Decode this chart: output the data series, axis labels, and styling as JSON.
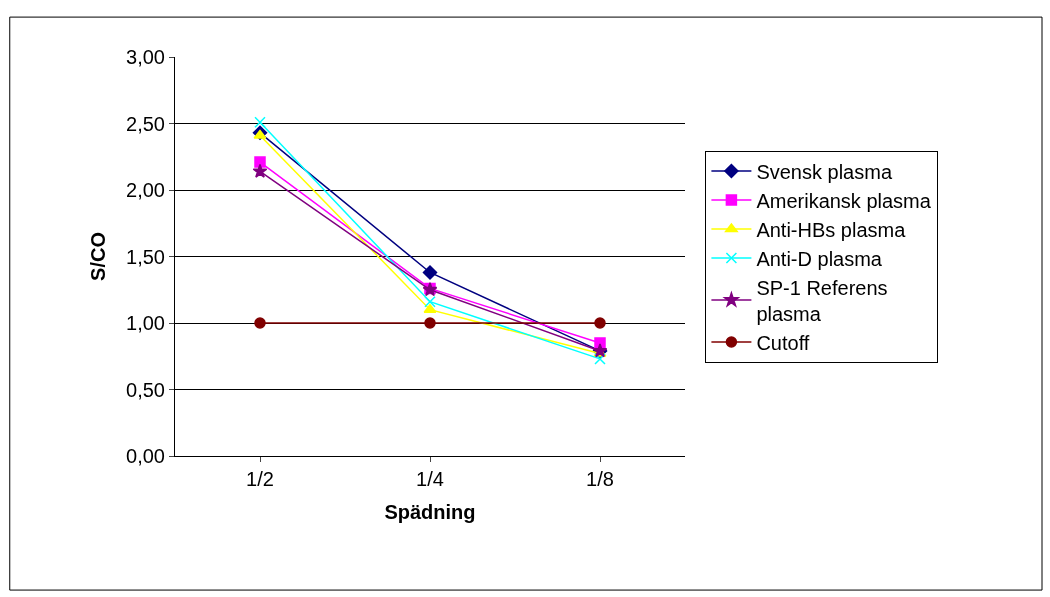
{
  "chart_data": {
    "type": "line",
    "xlabel": "Spädning",
    "ylabel": "S/CO",
    "categories": [
      "1/2",
      "1/4",
      "1/8"
    ],
    "ylim": [
      0,
      3
    ],
    "yticks": [
      {
        "value": 0,
        "label": "0,00"
      },
      {
        "value": 0.5,
        "label": "0,50"
      },
      {
        "value": 1,
        "label": "1,00"
      },
      {
        "value": 1.5,
        "label": "1,50"
      },
      {
        "value": 2,
        "label": "2,00"
      },
      {
        "value": 2.5,
        "label": "2,50"
      },
      {
        "value": 3,
        "label": "3,00"
      }
    ],
    "grid": "y",
    "legend": "right",
    "line_style": "solid",
    "series": [
      {
        "name": "Svensk plasma",
        "color": "#000080",
        "marker": "diamond",
        "values": [
          2.43,
          1.38,
          0.79
        ]
      },
      {
        "name": "Amerikansk plasma",
        "color": "#ff00ff",
        "marker": "square",
        "values": [
          2.21,
          1.26,
          0.85
        ]
      },
      {
        "name": "Anti-HBs plasma",
        "color": "#ffff00",
        "marker": "triangle",
        "values": [
          2.41,
          1.1,
          0.77
        ]
      },
      {
        "name": "Anti-D plasma",
        "color": "#00ffff",
        "marker": "cross",
        "values": [
          2.51,
          1.16,
          0.73
        ]
      },
      {
        "name": "SP-1 Referens plasma",
        "color": "#800080",
        "marker": "star",
        "values": [
          2.14,
          1.25,
          0.79
        ]
      },
      {
        "name": "Cutoff",
        "color": "#800000",
        "marker": "circle",
        "values": [
          1,
          1,
          1
        ]
      }
    ]
  }
}
